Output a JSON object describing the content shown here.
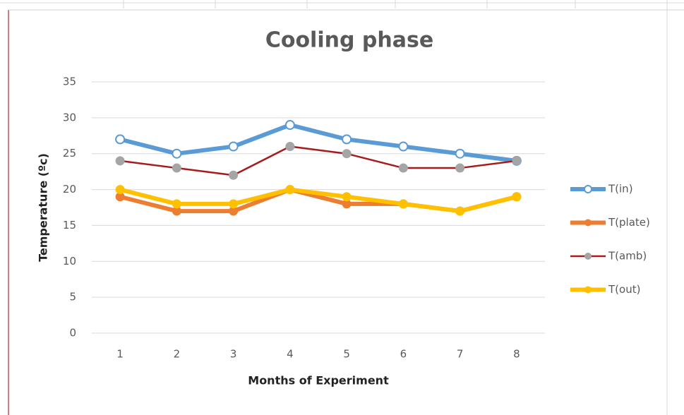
{
  "chart_data": {
    "type": "line",
    "title": "Cooling phase",
    "x_label": "Months of Experiment",
    "y_label": "Temperature (ºc)",
    "categories": [
      1,
      2,
      3,
      4,
      5,
      6,
      7,
      8
    ],
    "series": [
      {
        "name": "T(in)",
        "color": "#5b9bd5",
        "values": [
          27,
          25,
          26,
          29,
          27,
          26,
          25,
          24
        ]
      },
      {
        "name": "T(plate)",
        "color": "#ed7d31",
        "values": [
          19,
          17,
          17,
          20,
          18,
          18,
          17,
          19
        ]
      },
      {
        "name": "T(amb)",
        "color": "#a61c1c",
        "marker_color": "#a5a5a5",
        "values": [
          24,
          23,
          22,
          26,
          25,
          23,
          23,
          24
        ]
      },
      {
        "name": "T(out)",
        "color": "#ffc000",
        "values": [
          20,
          18,
          18,
          20,
          19,
          18,
          17,
          19
        ]
      }
    ],
    "ylim": [
      0,
      35
    ],
    "yticks": [
      0,
      5,
      10,
      15,
      20,
      25,
      30,
      35
    ],
    "grid": true,
    "legend": "right"
  }
}
